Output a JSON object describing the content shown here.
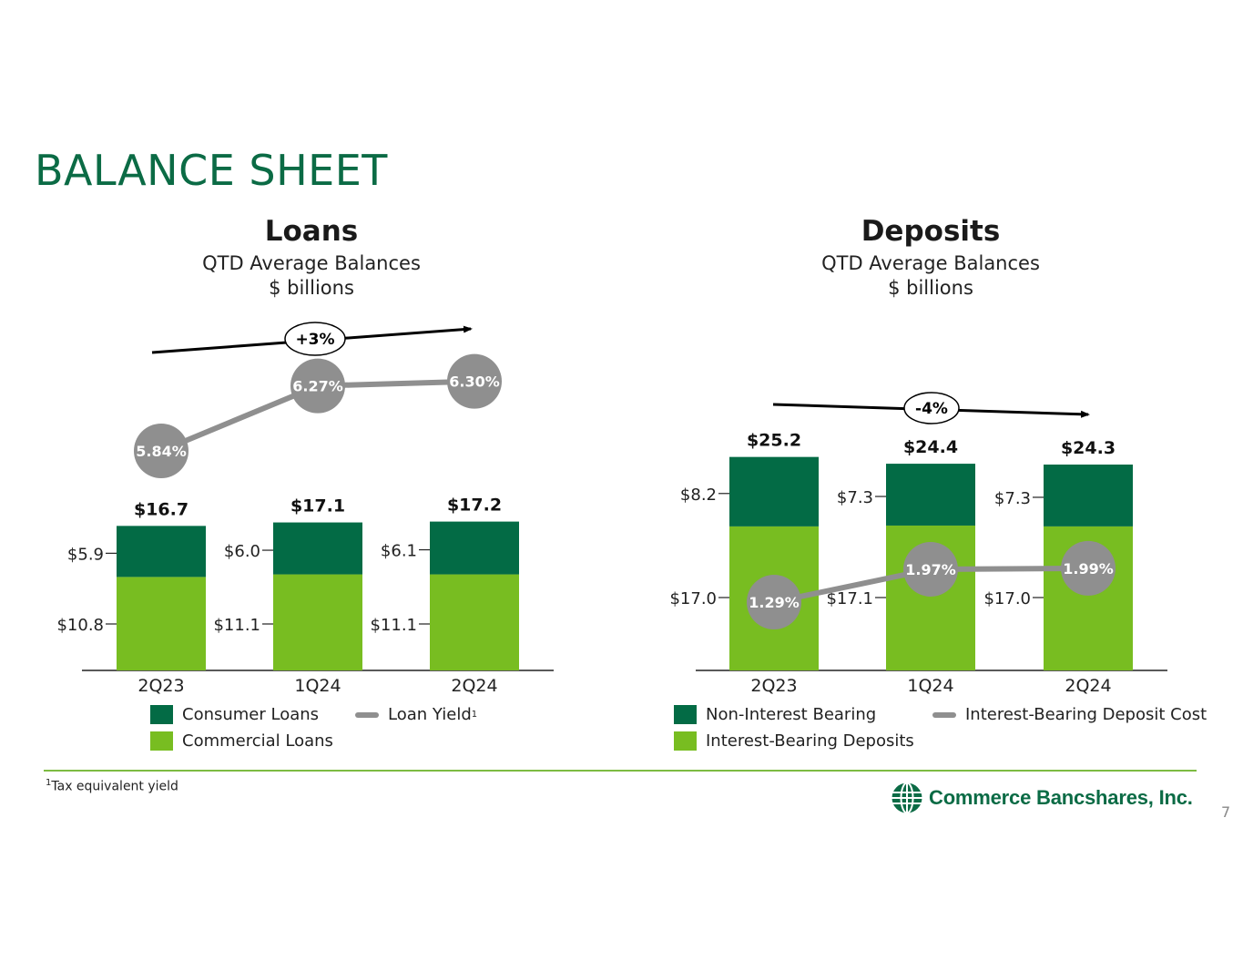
{
  "page": {
    "title": "BALANCE SHEET",
    "number": "7",
    "footnote_sup": "1",
    "footnote": "Tax equivalent yield",
    "logo_text": "Commerce Bancshares, Inc."
  },
  "colors": {
    "title": "#0b6b45",
    "dark_green": "#036b45",
    "light_green": "#78bd21",
    "yield_gray": "#8f8f8f",
    "divider": "#7dbb42"
  },
  "chart_data": [
    {
      "type": "bar",
      "stacked": true,
      "title": "Loans",
      "subtitle": [
        "QTD Average Balances",
        "$ billions"
      ],
      "categories": [
        "2Q23",
        "1Q24",
        "2Q24"
      ],
      "series": [
        {
          "name": "Commercial Loans",
          "color": "#78bd21",
          "values": [
            10.8,
            11.1,
            11.1
          ],
          "labels": [
            "$10.8",
            "$11.1",
            "$11.1"
          ]
        },
        {
          "name": "Consumer Loans",
          "color": "#036b45",
          "values": [
            5.9,
            6.0,
            6.1
          ],
          "labels": [
            "$5.9",
            "$6.0",
            "$6.1"
          ]
        }
      ],
      "totals": [
        "$16.7",
        "$17.1",
        "$17.2"
      ],
      "line": {
        "name": "Loan Yield",
        "name_sup": "1",
        "values": [
          5.84,
          6.27,
          6.3
        ],
        "labels": [
          "5.84%",
          "6.27%",
          "6.30%"
        ]
      },
      "trend": {
        "label": "+3%",
        "direction": "up"
      },
      "legend": [
        {
          "name": "Consumer Loans",
          "kind": "swatch",
          "color": "#036b45"
        },
        {
          "name": "Loan Yield",
          "kind": "line",
          "sup": "1"
        },
        {
          "name": "Commercial Loans",
          "kind": "swatch",
          "color": "#78bd21"
        }
      ]
    },
    {
      "type": "bar",
      "stacked": true,
      "title": "Deposits",
      "subtitle": [
        "QTD Average Balances",
        "$ billions"
      ],
      "categories": [
        "2Q23",
        "1Q24",
        "2Q24"
      ],
      "series": [
        {
          "name": "Interest-Bearing Deposits",
          "color": "#78bd21",
          "values": [
            17.0,
            17.1,
            17.0
          ],
          "labels": [
            "$17.0",
            "$17.1",
            "$17.0"
          ]
        },
        {
          "name": "Non-Interest Bearing",
          "color": "#036b45",
          "values": [
            8.2,
            7.3,
            7.3
          ],
          "labels": [
            "$8.2",
            "$7.3",
            "$7.3"
          ]
        }
      ],
      "totals": [
        "$25.2",
        "$24.4",
        "$24.3"
      ],
      "line": {
        "name": "Interest-Bearing Deposit Cost",
        "values": [
          1.29,
          1.97,
          1.99
        ],
        "labels": [
          "1.29%",
          "1.97%",
          "1.99%"
        ]
      },
      "trend": {
        "label": "-4%",
        "direction": "down"
      },
      "legend": [
        {
          "name": "Non-Interest Bearing",
          "kind": "swatch",
          "color": "#036b45"
        },
        {
          "name": "Interest-Bearing Deposit Cost",
          "kind": "line"
        },
        {
          "name": "Interest-Bearing Deposits",
          "kind": "swatch",
          "color": "#78bd21"
        }
      ]
    }
  ]
}
